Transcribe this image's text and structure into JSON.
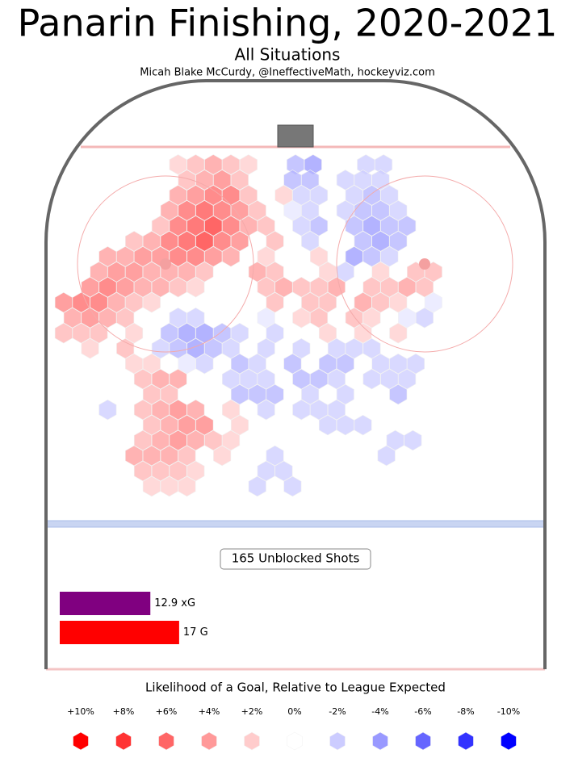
{
  "chart_data": {
    "type": "hexbin",
    "title": "Panarin Finishing, 2020-2021",
    "subtitle": "All Situations",
    "credit": "Micah Blake McCurdy, @IneffectiveMath, hockeyviz.com",
    "shots_label": "165 Unblocked Shots",
    "totals": [
      {
        "value": 12.9,
        "label": "12.9 xG",
        "color": "#800080"
      },
      {
        "value": 17,
        "label": "17 G",
        "color": "#ff0000"
      }
    ],
    "hexes": {
      "rows": [
        {
          "y": 86,
          "x": [
            -20,
            -17,
            -14,
            -11,
            -8,
            0,
            3,
            12,
            15
          ],
          "values": [
            2,
            3,
            4,
            3,
            2,
            -3,
            -4,
            -2,
            -2
          ]
        },
        {
          "y": 83.4,
          "x": [
            -18.5,
            -15.5,
            -12.5,
            -9.5,
            -0.5,
            2.5,
            8.5,
            11.5,
            14.5
          ],
          "values": [
            3,
            4,
            5,
            3,
            -3,
            -3,
            -2,
            -2,
            -2
          ]
        },
        {
          "y": 80.8,
          "x": [
            -20,
            -17,
            -14,
            -11,
            -8,
            -2,
            1,
            4,
            10,
            13,
            16
          ],
          "values": [
            4,
            5,
            6,
            6,
            3,
            2,
            -2,
            -2,
            -2,
            -3,
            -2
          ]
        },
        {
          "y": 78.2,
          "x": [
            -21.5,
            -18.5,
            -15.5,
            -12.5,
            -9.5,
            -6.5,
            -0.5,
            2.5,
            8.5,
            11.5,
            14.5,
            17.5
          ],
          "values": [
            4,
            6,
            7,
            6,
            5,
            3,
            -1,
            -2,
            -2,
            -3,
            -3,
            -2
          ]
        },
        {
          "y": 75.6,
          "x": [
            -23,
            -20,
            -17,
            -14,
            -11,
            -8,
            -5,
            1,
            4,
            10,
            13,
            16,
            19
          ],
          "values": [
            3,
            6,
            7,
            8,
            6,
            4,
            3,
            -2,
            -3,
            -3,
            -4,
            -3,
            -3
          ]
        },
        {
          "y": 73,
          "x": [
            -27.5,
            -24.5,
            -21.5,
            -18.5,
            -15.5,
            -12.5,
            -9.5,
            -3.5,
            2.5,
            11.5,
            14.5,
            17.5
          ],
          "values": [
            3,
            4,
            6,
            7,
            8,
            6,
            5,
            3,
            -2,
            -3,
            -4,
            -3
          ]
        },
        {
          "y": 70.4,
          "x": [
            -32,
            -29,
            -26,
            -23,
            -20,
            -17,
            -14,
            -11,
            -5,
            4,
            10,
            13,
            16
          ],
          "values": [
            4,
            4,
            5,
            5,
            6,
            6,
            5,
            4,
            2,
            2,
            -4,
            -3,
            -2
          ]
        },
        {
          "y": 67.8,
          "x": [
            -33.5,
            -30.5,
            -27.5,
            -24.5,
            -21.5,
            -18.5,
            -15.5,
            -6.5,
            -3.5,
            5.5,
            8.5,
            14.5,
            20.5,
            23.5
          ],
          "values": [
            4,
            5,
            5,
            4,
            4,
            4,
            3,
            4,
            3,
            2,
            -2,
            2,
            3,
            3
          ]
        },
        {
          "y": 65.2,
          "x": [
            -35,
            -32,
            -29,
            -26,
            -23,
            -20,
            -17,
            -5,
            -2,
            1,
            4,
            7,
            13,
            16,
            19,
            22
          ],
          "values": [
            5,
            6,
            5,
            4,
            4,
            3,
            2,
            3,
            4,
            3,
            3,
            4,
            3,
            3,
            4,
            3
          ]
        },
        {
          "y": 62.6,
          "x": [
            -39.5,
            -36.5,
            -33.5,
            -30.5,
            -27.5,
            -24.5,
            -3.5,
            2.5,
            5.5,
            11.5,
            14.5,
            17.5,
            23.5
          ],
          "values": [
            5,
            6,
            6,
            4,
            3,
            2,
            3,
            3,
            3,
            4,
            3,
            2,
            -1
          ]
        },
        {
          "y": 60,
          "x": [
            -38,
            -35,
            -32,
            -29,
            -20,
            -17,
            -5,
            1,
            4,
            10,
            13,
            19,
            22
          ],
          "values": [
            4,
            5,
            4,
            3,
            -2,
            -2,
            -1,
            2,
            3,
            3,
            2,
            -1,
            -2
          ]
        },
        {
          "y": 57.4,
          "x": [
            -39.5,
            -36.5,
            -33.5,
            -27.5,
            -21.5,
            -18.5,
            -15.5,
            -12.5,
            -9.5,
            -3.5,
            5.5,
            11.5,
            17.5
          ],
          "values": [
            3,
            3,
            3,
            2,
            -3,
            -4,
            -4,
            -3,
            -2,
            -2,
            2,
            2,
            2
          ]
        },
        {
          "y": 54.8,
          "x": [
            -35,
            -29,
            -23,
            -20,
            -17,
            -14,
            -11,
            -5,
            1,
            7,
            10,
            13
          ],
          "values": [
            2,
            3,
            -2,
            -3,
            -4,
            -3,
            -2,
            -2,
            -2,
            -2,
            -2,
            -2
          ]
        },
        {
          "y": 52.2,
          "x": [
            -27.5,
            -24.5,
            -18.5,
            -15.5,
            -9.5,
            -6.5,
            -0.5,
            5.5,
            8.5,
            14.5,
            17.5,
            20.5
          ],
          "values": [
            2,
            2,
            -1,
            -2,
            -3,
            -2,
            -3,
            -3,
            -3,
            -2,
            -2,
            -2
          ]
        },
        {
          "y": 49.6,
          "x": [
            -26,
            -23,
            -20,
            -11,
            -8,
            -5,
            1,
            4,
            7,
            13,
            16,
            19
          ],
          "values": [
            3,
            4,
            4,
            -2,
            -2,
            -2,
            -3,
            -3,
            -2,
            -2,
            -2,
            -2
          ]
        },
        {
          "y": 47,
          "x": [
            -24.5,
            -21.5,
            -9.5,
            -6.5,
            -3.5,
            2.5,
            8.5,
            17.5
          ],
          "values": [
            3,
            3,
            -3,
            -3,
            -3,
            -2,
            -2,
            -3
          ]
        },
        {
          "y": 44.4,
          "x": [
            -32,
            -26,
            -23,
            -20,
            -17,
            -11,
            -5,
            1,
            4,
            7
          ],
          "values": [
            -2,
            3,
            4,
            5,
            4,
            2,
            -2,
            -2,
            -2,
            -2
          ]
        },
        {
          "y": 41.8,
          "x": [
            -24.5,
            -21.5,
            -18.5,
            -15.5,
            -9.5,
            5.5,
            8.5,
            11.5
          ],
          "values": [
            3,
            4,
            5,
            5,
            2,
            -2,
            -2,
            -2
          ]
        },
        {
          "y": 39.2,
          "x": [
            -26,
            -23,
            -20,
            -17,
            -14,
            -11,
            17,
            20
          ],
          "values": [
            3,
            4,
            5,
            4,
            3,
            2,
            -2,
            -2
          ]
        },
        {
          "y": 36.6,
          "x": [
            -27.5,
            -24.5,
            -21.5,
            -18.5,
            -12.5,
            -3.5,
            15.5
          ],
          "values": [
            4,
            4,
            4,
            3,
            2,
            -2,
            -2
          ]
        },
        {
          "y": 34,
          "x": [
            -26,
            -23,
            -20,
            -17,
            -5,
            -2
          ],
          "values": [
            3,
            3,
            3,
            2,
            -2,
            -2
          ]
        },
        {
          "y": 31.4,
          "x": [
            -24.5,
            -21.5,
            -18.5,
            -6.5,
            -0.5
          ],
          "values": [
            2,
            2,
            2,
            -2,
            -2
          ]
        }
      ]
    },
    "legend": {
      "title": "Likelihood of a Goal, Relative to League Expected",
      "items": [
        {
          "value": 10,
          "label": "+10%"
        },
        {
          "value": 8,
          "label": "+8%"
        },
        {
          "value": 6,
          "label": "+6%"
        },
        {
          "value": 4,
          "label": "+4%"
        },
        {
          "value": 2,
          "label": "+2%"
        },
        {
          "value": 0,
          "label": "0%"
        },
        {
          "value": -2,
          "label": "-2%"
        },
        {
          "value": -4,
          "label": "-4%"
        },
        {
          "value": -6,
          "label": "-6%"
        },
        {
          "value": -8,
          "label": "-8%"
        },
        {
          "value": -10,
          "label": "-10%"
        }
      ]
    }
  }
}
